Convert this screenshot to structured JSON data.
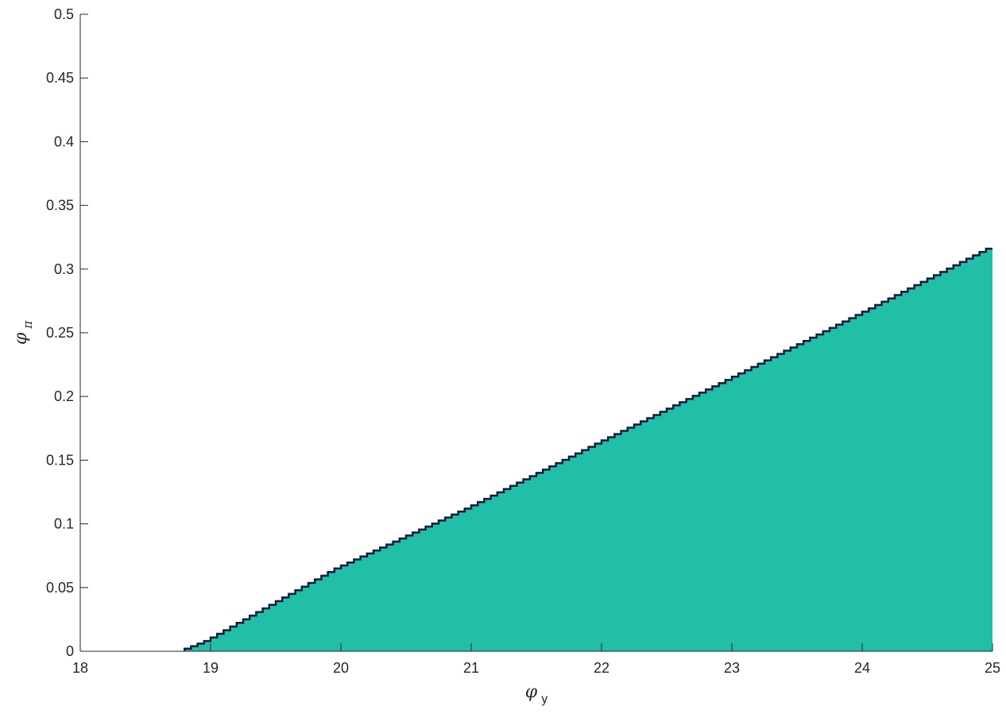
{
  "chart_data": {
    "type": "area",
    "xlabel": {
      "symbol": "φ",
      "subscript": "y"
    },
    "ylabel": {
      "symbol": "φ",
      "subscript": "π"
    },
    "xlim": [
      18,
      25
    ],
    "ylim": [
      0,
      0.5
    ],
    "x_ticks": [
      18,
      19,
      20,
      21,
      22,
      23,
      24,
      25
    ],
    "x_tick_labels": [
      "18",
      "19",
      "20",
      "21",
      "22",
      "23",
      "24",
      "25"
    ],
    "y_ticks": [
      0,
      0.05,
      0.1,
      0.15,
      0.2,
      0.25,
      0.3,
      0.35,
      0.4,
      0.45,
      0.5
    ],
    "y_tick_labels": [
      "0",
      "0.05",
      "0.1",
      "0.15",
      "0.2",
      "0.25",
      "0.3",
      "0.35",
      "0.4",
      "0.45",
      "0.5"
    ],
    "grid": false,
    "step_size": 0.05,
    "fill_color": "#22bfa8",
    "edge_color": "#1b1a3d",
    "region": {
      "x": [
        18,
        18.8,
        19,
        20,
        21,
        22,
        23,
        24,
        25
      ],
      "y": [
        0,
        0,
        0.008,
        0.065,
        0.112,
        0.163,
        0.213,
        0.264,
        0.316
      ]
    }
  }
}
